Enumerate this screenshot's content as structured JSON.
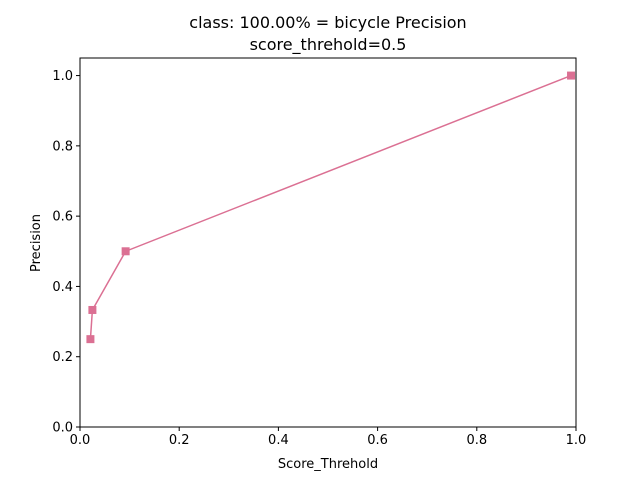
{
  "chart_data": {
    "type": "line",
    "title_line1": "class: 100.00% = bicycle Precision",
    "title_line2": "score_threhold=0.5",
    "xlabel": "Score_Threhold",
    "ylabel": "Precision",
    "xlim": [
      0.0,
      1.0
    ],
    "ylim": [
      0.0,
      1.05
    ],
    "xticks": [
      0.0,
      0.2,
      0.4,
      0.6,
      0.8,
      1.0
    ],
    "yticks": [
      0.0,
      0.2,
      0.4,
      0.6,
      0.8,
      1.0
    ],
    "xtick_labels": [
      "0.0",
      "0.2",
      "0.4",
      "0.6",
      "0.8",
      "1.0"
    ],
    "ytick_labels": [
      "0.0",
      "0.2",
      "0.4",
      "0.6",
      "0.8",
      "1.0"
    ],
    "grid": false,
    "marker": "square",
    "series": [
      {
        "color": "#db7093",
        "x": [
          0.99,
          0.092,
          0.025,
          0.021
        ],
        "y": [
          1.0,
          0.5,
          0.333,
          0.25
        ]
      }
    ]
  }
}
